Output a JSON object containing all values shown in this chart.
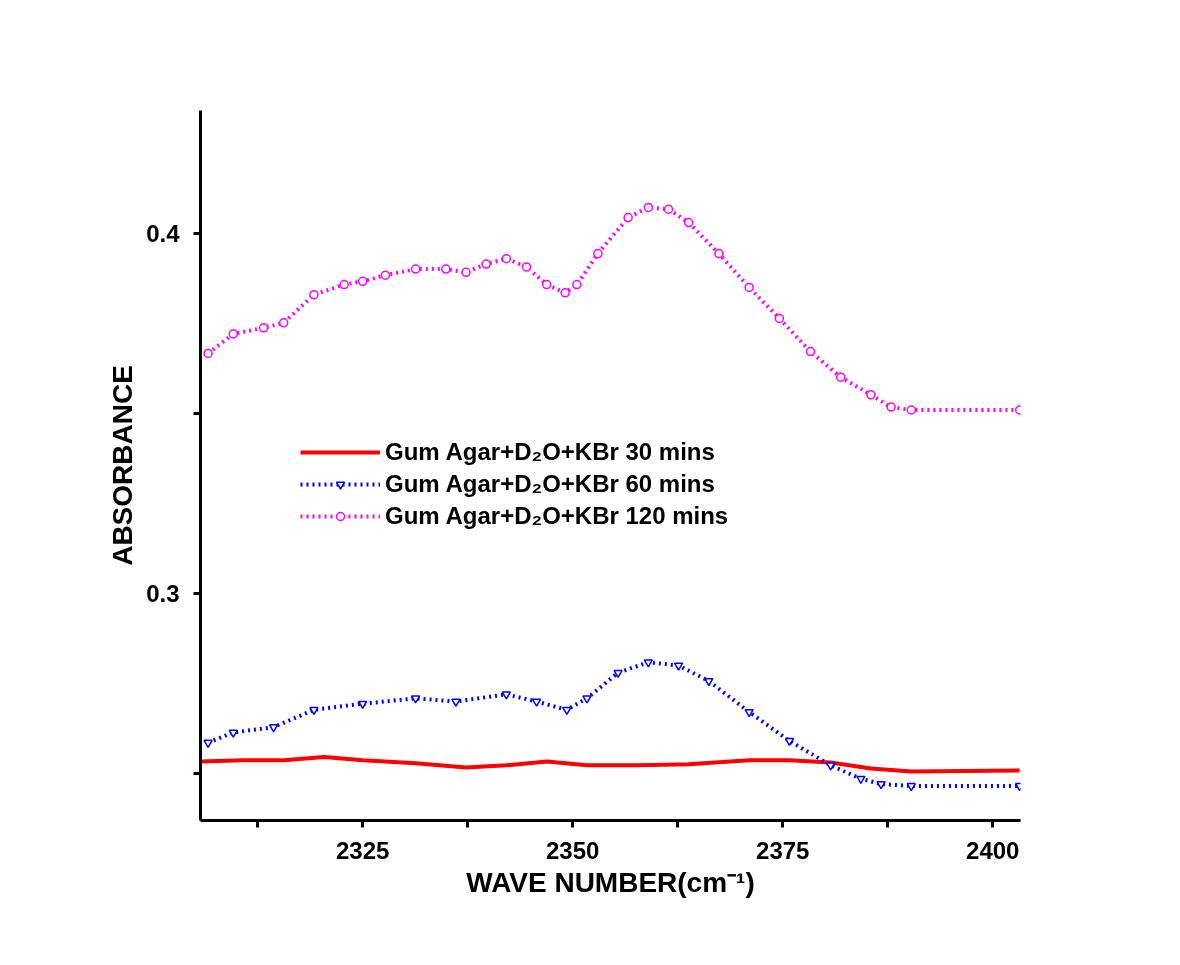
{
  "chart_data": {
    "type": "line",
    "xlabel": "WAVE NUMBER(cm⁻¹)",
    "ylabel": "ABSORBANCE",
    "xlim": [
      2305.7,
      2403.3
    ],
    "ylim": [
      0.237,
      0.434
    ],
    "xticks": [
      {
        "value": 2312.5,
        "label": null
      },
      2325,
      {
        "value": 2337.5,
        "label": null
      },
      2350,
      {
        "value": 2362.5,
        "label": null
      },
      2375,
      {
        "value": 2387.5,
        "label": null
      },
      2400
    ],
    "yticks": [
      {
        "value": 0.25,
        "label": null
      },
      0.3,
      {
        "value": 0.35,
        "label": null
      },
      0.4
    ],
    "grid": false,
    "legend": "left",
    "series": [
      {
        "name": "Gum Agar+D₂O+KBr 30 mins",
        "color": "#ff0000",
        "line_style": "solid",
        "marker": "none",
        "x": [
          2305.7,
          2310.8,
          2315.6,
          2320.4,
          2325,
          2331.3,
          2337.3,
          2342.1,
          2346.9,
          2351.7,
          2357.8,
          2363.8,
          2371,
          2375.8,
          2380.7,
          2385.5,
          2390.3,
          2403.2
        ],
        "values": [
          0.2534,
          0.2537,
          0.2537,
          0.2546,
          0.2537,
          0.2529,
          0.2517,
          0.2523,
          0.2534,
          0.2523,
          0.2523,
          0.2526,
          0.2537,
          0.2537,
          0.2531,
          0.2514,
          0.2506,
          0.2509
        ]
      },
      {
        "name": "Gum Agar+D₂O+KBr 60 mins",
        "color": "#0000ff",
        "line_style": "dotted",
        "marker": "triangle",
        "x": [
          2306.6,
          2309.6,
          2314.4,
          2319.2,
          2325,
          2331.3,
          2336.1,
          2342.1,
          2345.7,
          2349.3,
          2351.7,
          2355.4,
          2359,
          2362.6,
          2366.2,
          2371,
          2375.8,
          2380.7,
          2384.3,
          2386.7,
          2390.3,
          2403.2
        ],
        "values": [
          0.2586,
          0.2614,
          0.2629,
          0.2677,
          0.2694,
          0.2709,
          0.27,
          0.272,
          0.27,
          0.2677,
          0.2709,
          0.278,
          0.2809,
          0.28,
          0.2757,
          0.2671,
          0.2591,
          0.2523,
          0.2486,
          0.2471,
          0.2466,
          0.2466
        ]
      },
      {
        "name": "Gum Agar+D₂O+KBr 120 mins",
        "color": "#ff00ff",
        "line_style": "dotted",
        "marker": "circle",
        "x": [
          2306.6,
          2309.6,
          2313.2,
          2315.6,
          2319.2,
          2322.8,
          2325,
          2327.7,
          2331.3,
          2334.9,
          2337.3,
          2339.7,
          2342.1,
          2344.5,
          2346.9,
          2349.1,
          2350.5,
          2353,
          2356.6,
          2359,
          2361.4,
          2363.8,
          2367.4,
          2371,
          2374.6,
          2378.3,
          2381.9,
          2385.5,
          2387.9,
          2390.3,
          2403.2
        ],
        "values": [
          0.3666,
          0.372,
          0.3737,
          0.3751,
          0.3829,
          0.3857,
          0.3866,
          0.3883,
          0.39,
          0.39,
          0.3891,
          0.3914,
          0.3929,
          0.3906,
          0.3857,
          0.3834,
          0.3857,
          0.3943,
          0.4043,
          0.4071,
          0.4066,
          0.4029,
          0.3943,
          0.3849,
          0.3763,
          0.3671,
          0.36,
          0.3551,
          0.3517,
          0.3509,
          0.3509
        ]
      }
    ]
  }
}
